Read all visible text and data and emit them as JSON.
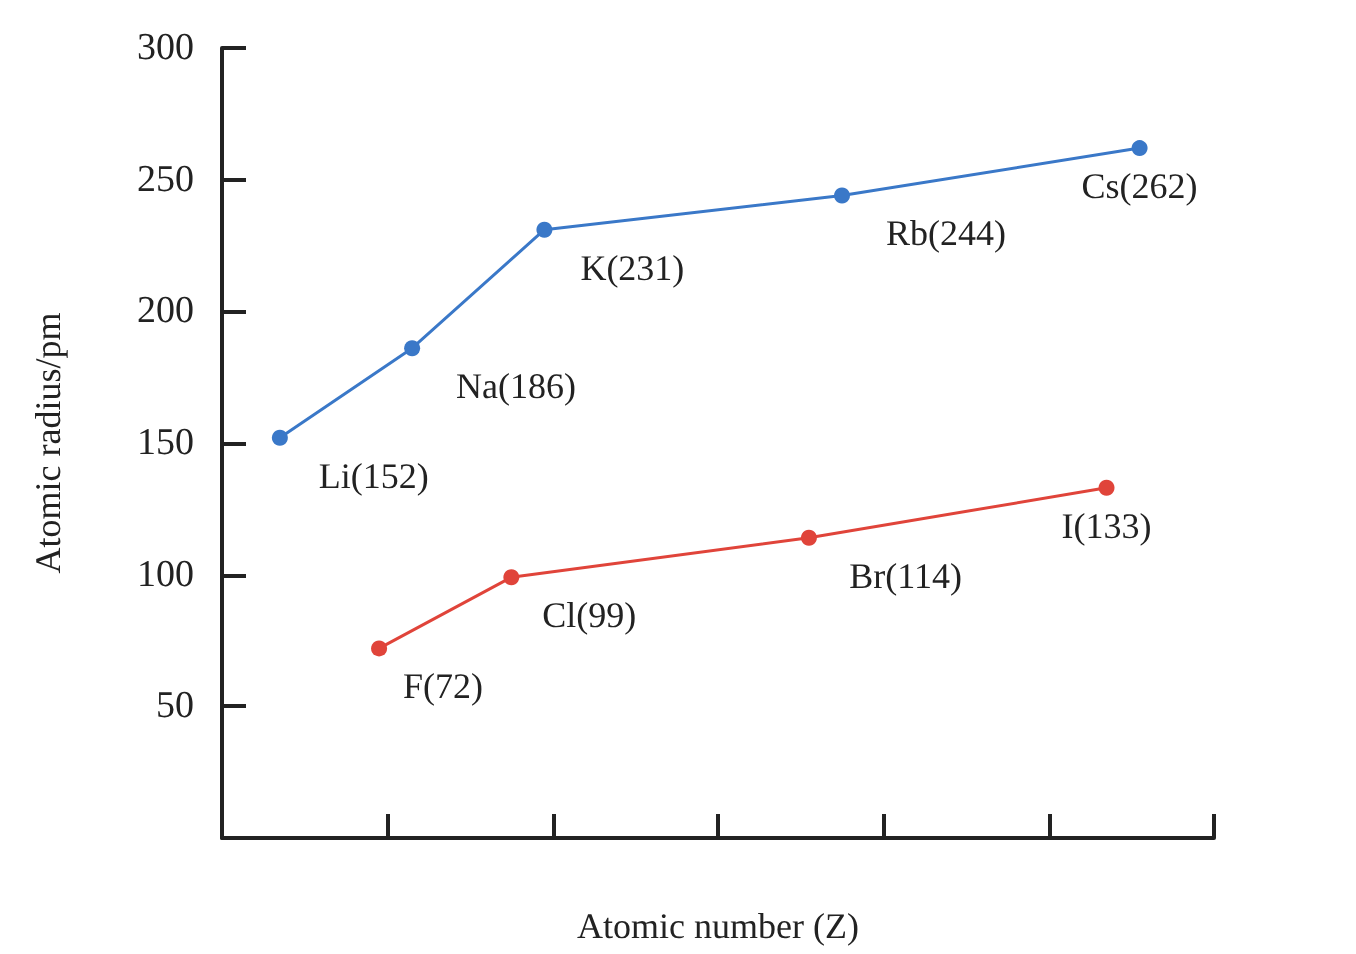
{
  "chart_data": {
    "type": "line",
    "xlabel": "Atomic number (Z)",
    "ylabel": "Atomic radius/pm",
    "categories": [
      null,
      null,
      null,
      null,
      null,
      null,
      null,
      null,
      null,
      null,
      null,
      null,
      null,
      null,
      null,
      null,
      null,
      null,
      null,
      null,
      null,
      null,
      null,
      null,
      null,
      null,
      null,
      null,
      null,
      null,
      null,
      null,
      null,
      null,
      null,
      null,
      null,
      null,
      null,
      null,
      null,
      null,
      null,
      null,
      null,
      null,
      null,
      null,
      null,
      null,
      null,
      null,
      null,
      null,
      null,
      null,
      null,
      null,
      null,
      null
    ],
    "ylim": [
      0,
      300
    ],
    "yticks": [
      50,
      100,
      150,
      200,
      250,
      300
    ],
    "tick_labels": "y",
    "marker": "circle",
    "line_style": "solid",
    "series": [
      {
        "color": "#3a78c8",
        "values": [
          null,
          null,
          null,
          152,
          null,
          null,
          null,
          null,
          null,
          null,
          null,
          186,
          null,
          null,
          null,
          null,
          null,
          null,
          null,
          231,
          null,
          null,
          null,
          null,
          null,
          null,
          null,
          null,
          null,
          null,
          null,
          null,
          null,
          null,
          null,
          null,
          null,
          244,
          null,
          null,
          null,
          null,
          null,
          null,
          null,
          null,
          null,
          null,
          null,
          null,
          null,
          null,
          null,
          null,
          null,
          262,
          null,
          null,
          null,
          null
        ],
        "value_labels": [
          null,
          null,
          null,
          "Li(152)",
          null,
          null,
          null,
          null,
          null,
          null,
          null,
          "Na(186)",
          null,
          null,
          null,
          null,
          null,
          null,
          null,
          "K(231)",
          null,
          null,
          null,
          null,
          null,
          null,
          null,
          null,
          null,
          null,
          null,
          null,
          null,
          null,
          null,
          null,
          null,
          "Rb(244)",
          null,
          null,
          null,
          null,
          null,
          null,
          null,
          null,
          null,
          null,
          null,
          null,
          null,
          null,
          null,
          null,
          null,
          "Cs(262)",
          null,
          null,
          null,
          null
        ]
      },
      {
        "color": "#e0443a",
        "values": [
          null,
          null,
          null,
          null,
          null,
          null,
          null,
          null,
          null,
          72,
          null,
          null,
          null,
          null,
          null,
          null,
          null,
          99,
          null,
          null,
          null,
          null,
          null,
          null,
          null,
          null,
          null,
          null,
          null,
          null,
          null,
          null,
          null,
          null,
          null,
          114,
          null,
          null,
          null,
          null,
          null,
          null,
          null,
          null,
          null,
          null,
          null,
          null,
          null,
          null,
          null,
          null,
          null,
          133,
          null,
          null,
          null,
          null,
          null,
          null
        ],
        "value_labels": [
          null,
          null,
          null,
          null,
          null,
          null,
          null,
          null,
          null,
          "F(72)",
          null,
          null,
          null,
          null,
          null,
          null,
          null,
          "Cl(99)",
          null,
          null,
          null,
          null,
          null,
          null,
          null,
          null,
          null,
          null,
          null,
          null,
          null,
          null,
          null,
          null,
          null,
          "Br(114)",
          null,
          null,
          null,
          null,
          null,
          null,
          null,
          null,
          null,
          null,
          null,
          null,
          null,
          null,
          null,
          null,
          null,
          "I(133)",
          null,
          null,
          null,
          null,
          null,
          null
        ]
      }
    ]
  }
}
